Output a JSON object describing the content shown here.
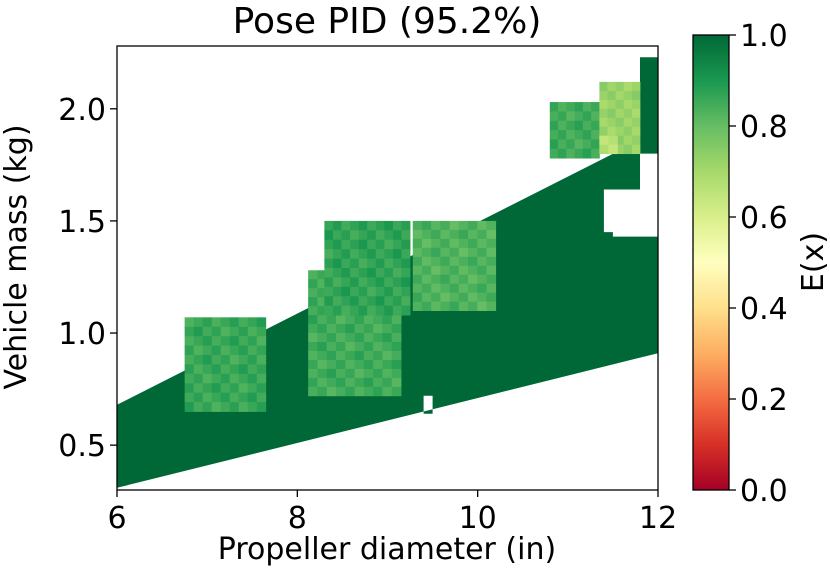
{
  "chart_data": {
    "type": "heatmap",
    "title": "Pose PID (95.2%)",
    "xlabel": "Propeller diameter (in)",
    "ylabel": "Vehicle mass (kg)",
    "xlim": [
      6,
      12
    ],
    "ylim": [
      0.3,
      2.28
    ],
    "xticks": [
      6,
      8,
      10,
      12
    ],
    "xtick_labels": [
      "6",
      "8",
      "10",
      "12"
    ],
    "yticks": [
      0.5,
      1.0,
      1.5,
      2.0
    ],
    "ytick_labels": [
      "0.5",
      "1.0",
      "1.5",
      "2.0"
    ],
    "colorbar": {
      "label": "E(x)",
      "range": [
        0,
        1
      ],
      "ticks": [
        0,
        0.2,
        0.4,
        0.6,
        0.8,
        1.0
      ],
      "tick_labels": [
        "0.0",
        "0.2",
        "0.4",
        "0.6",
        "0.8",
        "1.0"
      ],
      "colormap": "RdYlGn",
      "stops": [
        "#a50026",
        "#d73027",
        "#f46d43",
        "#fdae61",
        "#fee08b",
        "#ffffbf",
        "#d9ef8b",
        "#a6d96a",
        "#66bd63",
        "#1a9850",
        "#006837"
      ]
    },
    "feasible_region": {
      "value": 1.0,
      "polygon": [
        [
          6.0,
          0.31
        ],
        [
          12.0,
          0.91
        ],
        [
          12.0,
          2.23
        ],
        [
          11.8,
          2.23
        ],
        [
          11.8,
          1.82
        ],
        [
          11.6,
          1.82
        ],
        [
          6.0,
          0.68
        ]
      ],
      "holes": [
        [
          [
            9.4,
            0.64
          ],
          [
            9.5,
            0.64
          ],
          [
            9.5,
            0.72
          ],
          [
            9.4,
            0.72
          ]
        ],
        [
          [
            11.4,
            1.45
          ],
          [
            11.5,
            1.45
          ],
          [
            11.5,
            1.43
          ],
          [
            12.0,
            1.43
          ],
          [
            12.0,
            1.8
          ],
          [
            11.8,
            1.8
          ],
          [
            11.8,
            1.64
          ],
          [
            11.4,
            1.64
          ]
        ]
      ]
    },
    "patches": [
      {
        "x": [
          6.75,
          7.65
        ],
        "y": [
          0.65,
          1.07
        ],
        "value": 0.86
      },
      {
        "x": [
          8.12,
          9.15
        ],
        "y": [
          0.72,
          1.28
        ],
        "value": 0.85
      },
      {
        "x": [
          8.3,
          9.25
        ],
        "y": [
          1.08,
          1.5
        ],
        "value": 0.87
      },
      {
        "x": [
          9.28,
          10.2
        ],
        "y": [
          1.1,
          1.5
        ],
        "value": 0.83
      },
      {
        "x": [
          10.8,
          11.35
        ],
        "y": [
          1.78,
          2.03
        ],
        "value": 0.85
      },
      {
        "x": [
          11.35,
          11.8
        ],
        "y": [
          1.8,
          2.12
        ],
        "value": 0.72
      },
      {
        "x": [
          11.35,
          11.55
        ],
        "y": [
          1.8,
          1.88
        ],
        "value": 0.67
      }
    ]
  }
}
